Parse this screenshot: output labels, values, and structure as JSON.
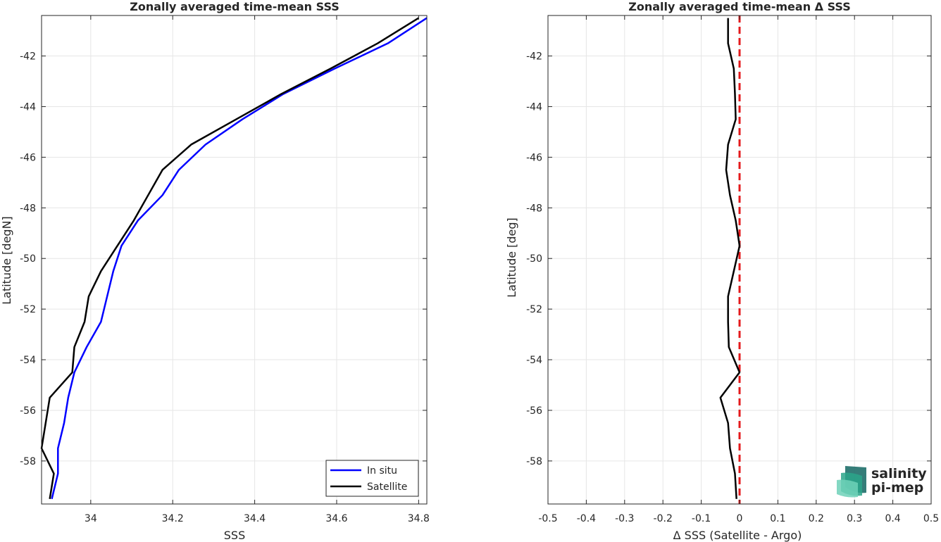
{
  "colors": {
    "in_situ": "#0000ff",
    "satellite": "#000000",
    "zero_line": "#e41a1c",
    "grid": "#e6e6e6",
    "axis": "#262626",
    "logo_primary": "#2aa58a",
    "logo_secondary": "#1f6f6a"
  },
  "chart_data": [
    {
      "type": "line",
      "title": "Zonally averaged time-mean SSS",
      "xlabel": "SSS",
      "ylabel": "Latitude [degN]",
      "xlim": [
        33.88,
        34.82
      ],
      "ylim": [
        -59.7,
        -40.4
      ],
      "xticks": [
        34,
        34.2,
        34.4,
        34.6,
        34.8
      ],
      "xtick_labels": [
        "34",
        "34.2",
        "34.4",
        "34.6",
        "34.8"
      ],
      "yticks": [
        -58,
        -56,
        -54,
        -52,
        -50,
        -48,
        -46,
        -44,
        -42
      ],
      "ytick_labels": [
        "-58",
        "-56",
        "-54",
        "-52",
        "-50",
        "-48",
        "-46",
        "-44",
        "-42"
      ],
      "grid": true,
      "legend_position": "bottom-right",
      "series": [
        {
          "name": "In situ",
          "color_key": "in_situ",
          "lat": [
            -59.5,
            -58.5,
            -57.5,
            -56.5,
            -55.5,
            -54.5,
            -53.5,
            -52.5,
            -51.5,
            -50.5,
            -49.5,
            -48.5,
            -47.5,
            -46.5,
            -45.5,
            -44.5,
            -43.5,
            -42.5,
            -41.5,
            -40.5
          ],
          "values": [
            33.905,
            33.92,
            33.92,
            33.935,
            33.945,
            33.96,
            33.99,
            34.025,
            34.04,
            34.055,
            34.075,
            34.115,
            34.175,
            34.215,
            34.28,
            34.37,
            34.47,
            34.595,
            34.725,
            34.82
          ]
        },
        {
          "name": "Satellite",
          "color_key": "satellite",
          "lat": [
            -59.5,
            -58.5,
            -57.5,
            -56.5,
            -55.5,
            -54.5,
            -53.5,
            -52.5,
            -51.5,
            -50.5,
            -49.5,
            -48.5,
            -47.5,
            -46.5,
            -45.5,
            -44.5,
            -43.5,
            -42.5,
            -41.5,
            -40.5
          ],
          "values": [
            33.9,
            33.91,
            33.88,
            33.89,
            33.9,
            33.955,
            33.96,
            33.985,
            33.995,
            34.025,
            34.065,
            34.105,
            34.14,
            34.175,
            34.245,
            34.355,
            34.465,
            34.585,
            34.7,
            34.8
          ]
        }
      ]
    },
    {
      "type": "line",
      "title": "Zonally averaged time-mean Δ SSS",
      "xlabel": "Δ SSS (Satellite - Argo)",
      "ylabel": "Latitude [deg]",
      "xlim": [
        -0.5,
        0.5
      ],
      "ylim": [
        -59.7,
        -40.4
      ],
      "xticks": [
        -0.5,
        -0.4,
        -0.3,
        -0.2,
        -0.1,
        0,
        0.1,
        0.2,
        0.3,
        0.4,
        0.5
      ],
      "xtick_labels": [
        "-0.5",
        "-0.4",
        "-0.3",
        "-0.2",
        "-0.1",
        "0",
        "0.1",
        "0.2",
        "0.3",
        "0.4",
        "0.5"
      ],
      "yticks": [
        -58,
        -56,
        -54,
        -52,
        -50,
        -48,
        -46,
        -44,
        -42
      ],
      "ytick_labels": [
        "-58",
        "-56",
        "-54",
        "-52",
        "-50",
        "-48",
        "-46",
        "-44",
        "-42"
      ],
      "grid": true,
      "reference_line": {
        "x": 0,
        "style": "dashed",
        "color_key": "zero_line"
      },
      "series": [
        {
          "color_key": "satellite",
          "lat": [
            -59.5,
            -58.5,
            -57.5,
            -56.5,
            -55.5,
            -54.5,
            -53.5,
            -52.5,
            -51.5,
            -50.5,
            -49.5,
            -48.5,
            -47.5,
            -46.5,
            -45.5,
            -44.5,
            -43.5,
            -42.5,
            -41.5,
            -40.5
          ],
          "values": [
            -0.008,
            -0.012,
            -0.025,
            -0.03,
            -0.05,
            0.0,
            -0.028,
            -0.03,
            -0.03,
            -0.015,
            0.0,
            -0.01,
            -0.025,
            -0.035,
            -0.03,
            -0.01,
            -0.012,
            -0.015,
            -0.03,
            -0.03
          ]
        }
      ]
    }
  ],
  "logo": {
    "line1": "salinity",
    "line2": "pi-mep"
  }
}
